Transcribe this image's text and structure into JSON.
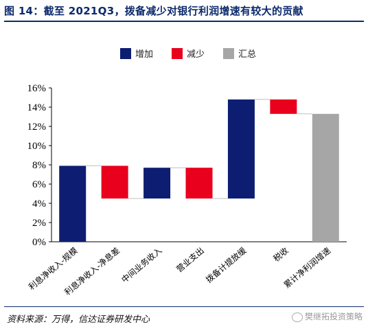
{
  "title": "图 14：截至 2021Q3，拨备减少对银行利润增速有较大的贡献",
  "source": "资料来源：万得，信达证券研发中心",
  "watermark": "樊继拓投资策略",
  "colors": {
    "increase": "#0d1e72",
    "decrease": "#e8001c",
    "total": "#a6a6a6",
    "title": "#0c2a6b"
  },
  "chart_data": {
    "type": "bar",
    "subtype": "waterfall",
    "categories": [
      "利息净收入-规模",
      "利息净收入-净息差",
      "中间业务收入",
      "营业支出",
      "拨备计提放缓",
      "税收",
      "累计净利润增速"
    ],
    "bars": [
      {
        "category": "利息净收入-规模",
        "kind": "increase",
        "start": 0,
        "end": 7.9
      },
      {
        "category": "利息净收入-净息差",
        "kind": "decrease",
        "start": 7.9,
        "end": 4.5
      },
      {
        "category": "中间业务收入",
        "kind": "increase",
        "start": 4.5,
        "end": 7.7
      },
      {
        "category": "营业支出",
        "kind": "decrease",
        "start": 7.7,
        "end": 4.5
      },
      {
        "category": "拨备计提放缓",
        "kind": "increase",
        "start": 4.5,
        "end": 14.8
      },
      {
        "category": "税收",
        "kind": "decrease",
        "start": 14.8,
        "end": 13.3
      },
      {
        "category": "累计净利润增速",
        "kind": "total",
        "start": 0,
        "end": 13.3
      }
    ],
    "legend": [
      {
        "key": "increase",
        "label": "增加"
      },
      {
        "key": "decrease",
        "label": "减少"
      },
      {
        "key": "total",
        "label": "汇总"
      }
    ],
    "legend_position": "top",
    "yticks": [
      "0%",
      "2%",
      "4%",
      "6%",
      "8%",
      "10%",
      "12%",
      "14%",
      "16%"
    ],
    "ylim": [
      0,
      16
    ],
    "grid": false
  }
}
